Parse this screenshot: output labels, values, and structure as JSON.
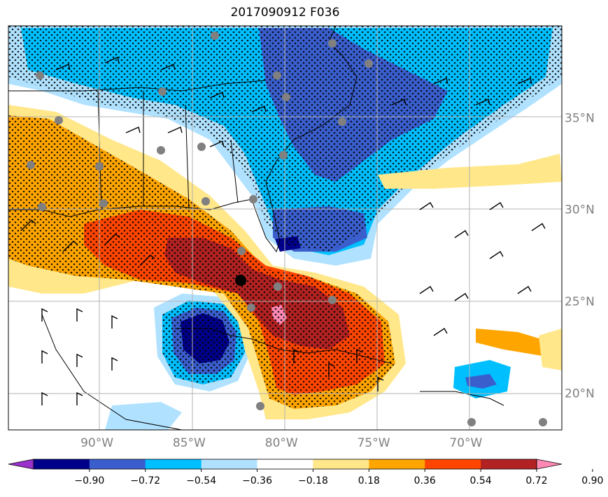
{
  "title": "2017090912 F036",
  "map": {
    "lat_ticks": [
      {
        "value": 35,
        "label": "35°N"
      },
      {
        "value": 30,
        "label": "30°N"
      },
      {
        "value": 25,
        "label": "25°N"
      },
      {
        "value": 20,
        "label": "20°N"
      }
    ],
    "lon_ticks": [
      {
        "value": -90,
        "label": "90°W"
      },
      {
        "value": -85,
        "label": "85°W"
      },
      {
        "value": -80,
        "label": "80°W"
      },
      {
        "value": -75,
        "label": "75°W"
      },
      {
        "value": -70,
        "label": "70°W"
      }
    ],
    "extent": {
      "lon_min": -94.8,
      "lon_max": -64.8,
      "lat_min": 18.0,
      "lat_max": 40.0
    }
  },
  "colorbar": {
    "colors": [
      "#9932cc",
      "#00008b",
      "#3a5fcd",
      "#00bfff",
      "#b0e2ff",
      "#ffffff",
      "#ffe78a",
      "#ffa500",
      "#ff4500",
      "#b22222",
      "#ff88b4"
    ],
    "tick_labels": [
      "−0.90",
      "−0.72",
      "−0.54",
      "−0.36",
      "−0.18",
      "0.18",
      "0.36",
      "0.54",
      "0.72",
      "0.90"
    ]
  }
}
